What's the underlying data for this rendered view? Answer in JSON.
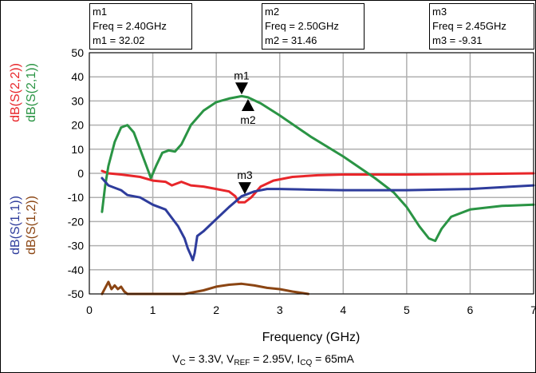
{
  "chart_data": {
    "type": "line",
    "xlabel": "Frequency (GHz)",
    "xlim": [
      0,
      7
    ],
    "ylim": [
      -50,
      50
    ],
    "xticks": [
      "0",
      "1",
      "2",
      "3",
      "4",
      "5",
      "6",
      "7"
    ],
    "yticks": [
      "50",
      "40",
      "30",
      "20",
      "10",
      "0",
      "-10",
      "-20",
      "-30",
      "-40",
      "-50"
    ],
    "grid": true,
    "conditions": {
      "prefix": "V",
      "vc_sub": "C",
      "vc_val": " = 3.3V, V",
      "vref_sub": "REF",
      "vref_val": " = 2.95V, I",
      "icq_sub": "CQ",
      "icq_val": " = 65mA"
    },
    "markers": [
      {
        "name": "m1",
        "freq_label": "Freq = 2.40GHz",
        "value_label": "m1 = 32.02",
        "x": 2.4,
        "y": 32.02,
        "dir": "down"
      },
      {
        "name": "m2",
        "freq_label": "Freq = 2.50GHz",
        "value_label": "m2 = 31.46",
        "x": 2.5,
        "y": 31.46,
        "dir": "up"
      },
      {
        "name": "m3",
        "freq_label": "Freq = 2.45GHz",
        "value_label": "m3 = -9.31",
        "x": 2.45,
        "y": -9.31,
        "dir": "down"
      }
    ],
    "series": [
      {
        "name": "dB(S(2,2))",
        "color": "#e8262a",
        "x": [
          0.2,
          0.3,
          0.5,
          0.8,
          1.0,
          1.2,
          1.3,
          1.45,
          1.6,
          1.8,
          2.0,
          2.2,
          2.3,
          2.35,
          2.45,
          2.55,
          2.7,
          2.9,
          3.2,
          3.6,
          4.0,
          5.0,
          6.0,
          7.0
        ],
        "y": [
          1,
          0,
          -0.5,
          -1.5,
          -3,
          -3.5,
          -5,
          -3.5,
          -5,
          -5.5,
          -6.5,
          -7.5,
          -9.5,
          -12,
          -12,
          -10,
          -5.5,
          -3,
          -1.5,
          -0.8,
          -0.5,
          -0.5,
          -0.3,
          0
        ]
      },
      {
        "name": "dB(S(2,1))",
        "color": "#2a9444",
        "x": [
          0.2,
          0.25,
          0.3,
          0.4,
          0.5,
          0.6,
          0.7,
          0.8,
          0.9,
          0.97,
          1.05,
          1.15,
          1.25,
          1.35,
          1.45,
          1.6,
          1.8,
          2.0,
          2.2,
          2.4,
          2.5,
          2.7,
          3.0,
          3.5,
          4.0,
          4.5,
          4.8,
          5.0,
          5.2,
          5.35,
          5.45,
          5.55,
          5.7,
          6.0,
          6.5,
          7.0
        ],
        "y": [
          -16,
          -5,
          3,
          13,
          19,
          20,
          17,
          10,
          3,
          -2,
          3,
          8.5,
          9.5,
          9,
          12,
          20,
          26,
          29.5,
          31,
          32,
          31.5,
          29,
          24,
          15,
          7,
          -2,
          -8,
          -14,
          -22,
          -27,
          -28,
          -23,
          -18,
          -15,
          -13.5,
          -13
        ]
      },
      {
        "name": "dB(S(1,1))",
        "color": "#2e3c9c",
        "x": [
          0.2,
          0.3,
          0.4,
          0.5,
          0.6,
          0.8,
          1.0,
          1.2,
          1.4,
          1.5,
          1.55,
          1.6,
          1.63,
          1.66,
          1.7,
          1.8,
          2.0,
          2.2,
          2.4,
          2.6,
          2.8,
          3.0,
          3.5,
          4.0,
          5.0,
          6.0,
          7.0
        ],
        "y": [
          -2,
          -5,
          -6,
          -7,
          -9,
          -10,
          -13,
          -15,
          -22,
          -27,
          -31,
          -34,
          -36,
          -33,
          -26,
          -24,
          -19,
          -14,
          -9.5,
          -7.5,
          -6.5,
          -6.5,
          -6.8,
          -7,
          -7,
          -6.5,
          -5
        ]
      },
      {
        "name": "dB(S(1,2))",
        "color": "#8b4513",
        "x": [
          0.2,
          0.3,
          0.35,
          0.4,
          0.45,
          0.5,
          0.55,
          0.6,
          0.7,
          1.5,
          1.8,
          2.0,
          2.2,
          2.4,
          2.6,
          2.8,
          3.0,
          3.2,
          3.45
        ],
        "y": [
          -50,
          -45,
          -48,
          -46.5,
          -48,
          -47,
          -49,
          -50,
          -50,
          -50,
          -48.5,
          -47,
          -46.2,
          -45.8,
          -46.5,
          -47.5,
          -48,
          -49,
          -50
        ]
      }
    ]
  }
}
